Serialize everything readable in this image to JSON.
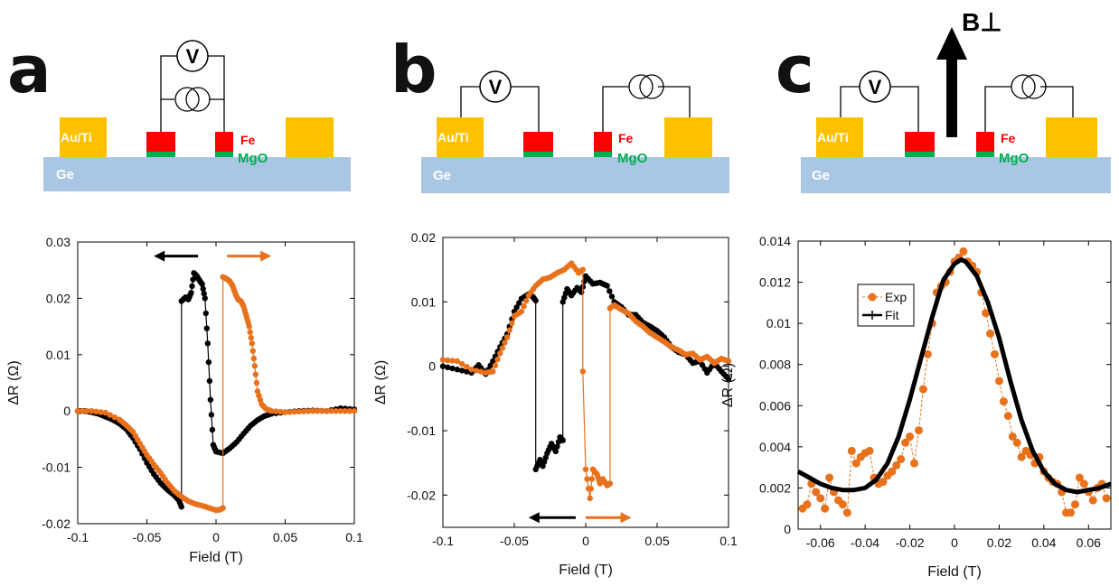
{
  "colors": {
    "substrate": "#a9c7e4",
    "contact": "#ffc000",
    "fe": "#ff0000",
    "mgo": "#00b050",
    "orange": "#e8711c",
    "black": "#000000"
  },
  "labels": {
    "ge": "Ge",
    "au_ti": "Au/Ti",
    "fe": "Fe",
    "mgo": "MgO",
    "voltmeter": "V",
    "b_perp": "B⊥"
  },
  "panels": {
    "a": {
      "letter": "a"
    },
    "b": {
      "letter": "b"
    },
    "c": {
      "letter": "c"
    }
  },
  "chart_data": [
    {
      "panel": "a",
      "type": "line",
      "xlabel": "Field (T)",
      "ylabel": "ΔR (Ω)",
      "xlim": [
        -0.1,
        0.1
      ],
      "ylim": [
        -0.02,
        0.03
      ],
      "xticks": [
        "-0.1",
        "-0.05",
        "0",
        "0.05",
        "0.1"
      ],
      "yticks": [
        "-0.02",
        "-0.01",
        "0",
        "0.01",
        "0.02",
        "0.03"
      ],
      "xtick_values": [
        -0.1,
        -0.05,
        0,
        0.05,
        0.1
      ],
      "ytick_values": [
        -0.02,
        -0.01,
        0,
        0.01,
        0.02,
        0.03
      ],
      "arrows": [
        {
          "color": "black",
          "direction": "left",
          "x_from": -0.013,
          "x_to": -0.045,
          "y": 0.0275
        },
        {
          "color": "orange",
          "direction": "right",
          "x_from": 0.008,
          "x_to": 0.04,
          "y": 0.0275
        }
      ],
      "series": [
        {
          "color": "black",
          "x": [
            -0.1,
            -0.095,
            -0.09,
            -0.085,
            -0.08,
            -0.075,
            -0.07,
            -0.065,
            -0.06,
            -0.055,
            -0.05,
            -0.045,
            -0.04,
            -0.035,
            -0.03,
            -0.027,
            -0.025,
            -0.025,
            -0.022,
            -0.02,
            -0.018,
            -0.016,
            -0.014,
            -0.012,
            -0.01,
            -0.008,
            -0.006,
            -0.004,
            -0.002,
            0.0,
            0.005,
            0.01,
            0.015,
            0.02,
            0.025,
            0.03,
            0.035,
            0.04,
            0.05,
            0.06,
            0.07,
            0.08,
            0.09,
            0.1
          ],
          "y": [
            0,
            0,
            -0.0002,
            -0.0005,
            -0.001,
            -0.0015,
            -0.0022,
            -0.0032,
            -0.0048,
            -0.0068,
            -0.0092,
            -0.0112,
            -0.0128,
            -0.014,
            -0.015,
            -0.0158,
            -0.017,
            0.0195,
            0.0202,
            0.0198,
            0.021,
            0.0245,
            0.024,
            0.0232,
            0.0225,
            0.02,
            0.012,
            0.002,
            -0.006,
            -0.0072,
            -0.0075,
            -0.0066,
            -0.0055,
            -0.004,
            -0.0026,
            -0.0016,
            -0.0009,
            -0.0005,
            -0.0002,
            0,
            0.0001,
            0,
            0.0005,
            0.0003
          ]
        },
        {
          "color": "orange",
          "x": [
            -0.1,
            -0.09,
            -0.08,
            -0.07,
            -0.065,
            -0.06,
            -0.055,
            -0.05,
            -0.045,
            -0.04,
            -0.035,
            -0.03,
            -0.025,
            -0.02,
            -0.015,
            -0.01,
            -0.005,
            0.0,
            0.003,
            0.005,
            0.005,
            0.008,
            0.01,
            0.012,
            0.014,
            0.016,
            0.018,
            0.02,
            0.022,
            0.024,
            0.026,
            0.028,
            0.03,
            0.033,
            0.036,
            0.04,
            0.05,
            0.06,
            0.07,
            0.08,
            0.09,
            0.1
          ],
          "y": [
            0,
            0,
            -0.0003,
            -0.0015,
            -0.0025,
            -0.0037,
            -0.0058,
            -0.0078,
            -0.0095,
            -0.011,
            -0.0128,
            -0.0142,
            -0.0152,
            -0.016,
            -0.0165,
            -0.0168,
            -0.0172,
            -0.0176,
            -0.0175,
            -0.0172,
            0.0238,
            0.0234,
            0.023,
            0.0222,
            0.0208,
            0.0198,
            0.0195,
            0.0185,
            0.0168,
            0.015,
            0.012,
            0.008,
            0.0035,
            0.0012,
            0.0004,
            0.0,
            -0.0002,
            -0.0001,
            0.0,
            0.0,
            0.0,
            0.0
          ]
        }
      ]
    },
    {
      "panel": "b",
      "type": "line",
      "xlabel": "Field (T)",
      "ylabel": "ΔR (Ω)",
      "xlim": [
        -0.1,
        0.1
      ],
      "ylim": [
        -0.025,
        0.02
      ],
      "xticks": [
        "-0.1",
        "-0.05",
        "0",
        "0.05",
        "0.1"
      ],
      "yticks": [
        "-0.02",
        "-0.01",
        "0",
        "0.01",
        "0.02"
      ],
      "xtick_values": [
        -0.1,
        -0.05,
        0,
        0.05,
        0.1
      ],
      "ytick_values": [
        -0.02,
        -0.01,
        0,
        0.01,
        0.02
      ],
      "arrows": [
        {
          "color": "black",
          "direction": "left",
          "x_from": -0.007,
          "x_to": -0.04,
          "y": -0.0235
        },
        {
          "color": "orange",
          "direction": "right",
          "x_from": 0.0,
          "x_to": 0.032,
          "y": -0.0235
        }
      ],
      "series": [
        {
          "color": "black",
          "x": [
            -0.1,
            -0.09,
            -0.08,
            -0.075,
            -0.07,
            -0.065,
            -0.06,
            -0.055,
            -0.05,
            -0.045,
            -0.04,
            -0.037,
            -0.035,
            -0.035,
            -0.032,
            -0.03,
            -0.027,
            -0.024,
            -0.021,
            -0.018,
            -0.016,
            -0.016,
            -0.013,
            -0.01,
            -0.006,
            -0.003,
            0.0,
            0.005,
            0.01,
            0.015,
            0.02,
            0.025,
            0.03,
            0.035,
            0.04,
            0.045,
            0.05,
            0.055,
            0.06,
            0.065,
            0.07,
            0.075,
            0.08,
            0.085,
            0.09,
            0.095,
            0.1
          ],
          "y": [
            0.0,
            -0.0005,
            -0.001,
            0.0002,
            -0.0012,
            0.0008,
            0.003,
            0.005,
            0.0085,
            0.0105,
            0.0112,
            0.0108,
            0.0102,
            -0.016,
            -0.0145,
            -0.0155,
            -0.0135,
            -0.012,
            -0.0132,
            -0.011,
            -0.0115,
            0.01,
            0.012,
            0.011,
            0.0122,
            0.0115,
            0.014,
            0.0128,
            0.013,
            0.0125,
            0.01,
            0.0092,
            0.008,
            0.008,
            0.0068,
            0.0062,
            0.0055,
            0.0045,
            0.003,
            0.0022,
            0.0018,
            0.0005,
            0.0008,
            -0.001,
            0.0005,
            -0.0008,
            -0.002
          ]
        },
        {
          "color": "orange",
          "x": [
            -0.1,
            -0.09,
            -0.08,
            -0.07,
            -0.065,
            -0.06,
            -0.055,
            -0.05,
            -0.045,
            -0.04,
            -0.035,
            -0.03,
            -0.025,
            -0.02,
            -0.015,
            -0.01,
            -0.005,
            -0.002,
            -0.002,
            0.0,
            0.003,
            0.005,
            0.008,
            0.01,
            0.012,
            0.015,
            0.017,
            0.017,
            0.02,
            0.025,
            0.03,
            0.035,
            0.04,
            0.045,
            0.05,
            0.055,
            0.06,
            0.065,
            0.07,
            0.075,
            0.08,
            0.085,
            0.09,
            0.095,
            0.1
          ],
          "y": [
            0.001,
            0.0008,
            -0.0005,
            -0.001,
            -0.0008,
            0.002,
            0.0045,
            0.0078,
            0.0085,
            0.011,
            0.0125,
            0.0135,
            0.0138,
            0.0145,
            0.015,
            0.016,
            0.0145,
            0.015,
            -0.0008,
            -0.016,
            -0.0205,
            -0.016,
            -0.0168,
            -0.0182,
            -0.0175,
            -0.0185,
            -0.0182,
            0.009,
            0.0095,
            0.0088,
            0.0082,
            0.007,
            0.0062,
            0.0052,
            0.0045,
            0.0038,
            0.003,
            0.0025,
            0.0018,
            0.002,
            0.001,
            0.0015,
            0.0005,
            0.0012,
            0.0008
          ]
        }
      ]
    },
    {
      "panel": "c",
      "type": "line",
      "xlabel": "Field (T)",
      "ylabel": "ΔR (Ω)",
      "xlim": [
        -0.07,
        0.07
      ],
      "ylim": [
        0,
        0.014
      ],
      "xticks": [
        "-0.06",
        "-0.04",
        "-0.02",
        "0",
        "0.02",
        "0.04",
        "0.06"
      ],
      "yticks": [
        "0",
        "0.002",
        "0.004",
        "0.006",
        "0.008",
        "0.01",
        "0.012",
        "0.014"
      ],
      "xtick_values": [
        -0.06,
        -0.04,
        -0.02,
        0,
        0.02,
        0.04,
        0.06
      ],
      "ytick_values": [
        0,
        0.002,
        0.004,
        0.006,
        0.008,
        0.01,
        0.012,
        0.014
      ],
      "legend": {
        "placement": "top-left",
        "entries": [
          "Exp",
          "Fit"
        ]
      },
      "series": [
        {
          "name": "Exp",
          "color": "orange",
          "style": "dashed-markers",
          "x": [
            -0.068,
            -0.066,
            -0.064,
            -0.062,
            -0.06,
            -0.058,
            -0.056,
            -0.054,
            -0.052,
            -0.05,
            -0.048,
            -0.046,
            -0.044,
            -0.042,
            -0.04,
            -0.038,
            -0.036,
            -0.034,
            -0.032,
            -0.03,
            -0.028,
            -0.026,
            -0.024,
            -0.022,
            -0.02,
            -0.018,
            -0.016,
            -0.014,
            -0.012,
            -0.01,
            -0.008,
            -0.006,
            -0.004,
            -0.002,
            0.0,
            0.002,
            0.004,
            0.006,
            0.008,
            0.01,
            0.012,
            0.014,
            0.016,
            0.018,
            0.02,
            0.022,
            0.024,
            0.026,
            0.028,
            0.03,
            0.032,
            0.034,
            0.036,
            0.038,
            0.04,
            0.042,
            0.044,
            0.046,
            0.048,
            0.05,
            0.052,
            0.054,
            0.056,
            0.058,
            0.06,
            0.062,
            0.064,
            0.066,
            0.068
          ],
          "y": [
            0.001,
            0.0012,
            0.0022,
            0.0018,
            0.0015,
            0.001,
            0.0025,
            0.0018,
            0.0014,
            0.0012,
            0.0008,
            0.0038,
            0.0032,
            0.0035,
            0.0037,
            0.0038,
            0.0025,
            0.0022,
            0.0023,
            0.0026,
            0.0028,
            0.0031,
            0.0034,
            0.0042,
            0.0045,
            0.0032,
            0.0048,
            0.0068,
            0.0085,
            0.01,
            0.0115,
            0.0118,
            0.012,
            0.0125,
            0.013,
            0.0132,
            0.0135,
            0.013,
            0.0128,
            0.0125,
            0.0115,
            0.0105,
            0.0095,
            0.0085,
            0.0072,
            0.0062,
            0.0055,
            0.0045,
            0.0042,
            0.0035,
            0.0038,
            0.0036,
            0.0032,
            0.0035,
            0.0028,
            0.0025,
            0.0023,
            0.0022,
            0.0018,
            0.0008,
            0.0008,
            0.0012,
            0.0025,
            0.0022,
            0.0018,
            0.0014,
            0.002,
            0.0022,
            0.0015
          ]
        },
        {
          "name": "Fit",
          "color": "black",
          "style": "thick-line",
          "x": [
            -0.07,
            -0.065,
            -0.06,
            -0.055,
            -0.05,
            -0.045,
            -0.04,
            -0.035,
            -0.03,
            -0.025,
            -0.02,
            -0.015,
            -0.01,
            -0.005,
            0.0,
            0.003,
            0.005,
            0.01,
            0.015,
            0.02,
            0.025,
            0.03,
            0.035,
            0.04,
            0.045,
            0.05,
            0.055,
            0.06,
            0.065,
            0.07
          ],
          "y": [
            0.0028,
            0.0025,
            0.0022,
            0.002,
            0.0019,
            0.0019,
            0.002,
            0.0024,
            0.0032,
            0.0045,
            0.0063,
            0.0083,
            0.0103,
            0.0121,
            0.0129,
            0.0131,
            0.013,
            0.0123,
            0.011,
            0.0093,
            0.0072,
            0.0053,
            0.0038,
            0.0028,
            0.0022,
            0.0019,
            0.0018,
            0.0019,
            0.002,
            0.0022
          ]
        }
      ]
    }
  ]
}
